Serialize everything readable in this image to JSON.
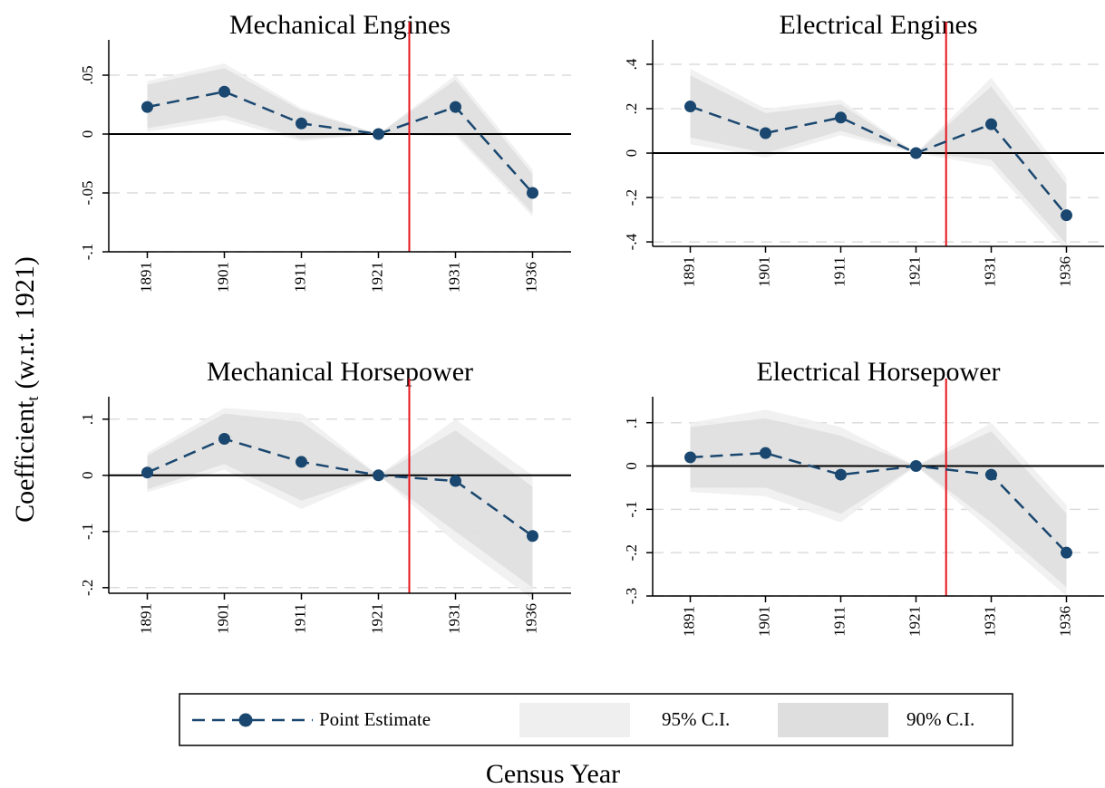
{
  "chart_data": [
    {
      "type": "line",
      "title": "Mechanical Engines",
      "categories": [
        "1891",
        "1901",
        "1911",
        "1921",
        "1931",
        "1936"
      ],
      "ylim": [
        -0.1,
        0.08
      ],
      "yticks": [
        {
          "value": -0.1,
          "label": "-.1"
        },
        {
          "value": -0.05,
          "label": "-.05"
        },
        0,
        {
          "value": 0.05,
          "label": ".05"
        }
      ],
      "grid": true,
      "hline": 0,
      "vline": 3.4,
      "vline_color": "#e8141c",
      "series": [
        {
          "name": "Point Estimate",
          "color": "#1a476f",
          "values": [
            0.023,
            0.036,
            0.009,
            0,
            0.023,
            -0.05
          ]
        },
        {
          "name": "95% C.I.",
          "color": "#efefef",
          "lower": [
            0.002,
            0.012,
            -0.006,
            0,
            -0.002,
            -0.07
          ],
          "upper": [
            0.045,
            0.06,
            0.022,
            0,
            0.05,
            -0.03
          ]
        },
        {
          "name": "90% C.I.",
          "color": "#dedede",
          "lower": [
            0.005,
            0.016,
            -0.004,
            0,
            0.001,
            -0.067
          ],
          "upper": [
            0.042,
            0.056,
            0.02,
            0,
            0.046,
            -0.034
          ]
        }
      ]
    },
    {
      "type": "line",
      "title": "Electrical Engines",
      "categories": [
        "1891",
        "1901",
        "1911",
        "1921",
        "1931",
        "1936"
      ],
      "ylim": [
        -0.42,
        0.51
      ],
      "yticks": [
        {
          "value": -0.4,
          "label": "-.4"
        },
        {
          "value": -0.2,
          "label": "-.2"
        },
        0,
        {
          "value": 0.2,
          "label": ".2"
        },
        {
          "value": 0.4,
          "label": ".4"
        }
      ],
      "grid": true,
      "hline": 0,
      "vline": 3.4,
      "vline_color": "#e8141c",
      "series": [
        {
          "name": "Point Estimate",
          "color": "#1a476f",
          "values": [
            0.21,
            0.09,
            0.16,
            0,
            0.13,
            -0.28
          ]
        },
        {
          "name": "95% C.I.",
          "color": "#efefef",
          "lower": [
            0.04,
            -0.02,
            0.08,
            0,
            -0.06,
            -0.44
          ],
          "upper": [
            0.38,
            0.2,
            0.24,
            0,
            0.34,
            -0.11
          ]
        },
        {
          "name": "90% C.I.",
          "color": "#dedede",
          "lower": [
            0.07,
            0.0,
            0.1,
            0,
            -0.03,
            -0.41
          ],
          "upper": [
            0.35,
            0.18,
            0.22,
            0,
            0.3,
            -0.14
          ]
        }
      ]
    },
    {
      "type": "line",
      "title": "Mechanical Horsepower",
      "categories": [
        "1891",
        "1901",
        "1911",
        "1921",
        "1931",
        "1936"
      ],
      "ylim": [
        -0.21,
        0.14
      ],
      "yticks": [
        {
          "value": -0.2,
          "label": "-.2"
        },
        {
          "value": -0.1,
          "label": "-.1"
        },
        0,
        {
          "value": 0.1,
          "label": ".1"
        }
      ],
      "grid": true,
      "hline": 0,
      "vline": 3.4,
      "vline_color": "#e8141c",
      "series": [
        {
          "name": "Point Estimate",
          "color": "#1a476f",
          "values": [
            0.005,
            0.065,
            0.024,
            0,
            -0.01,
            -0.108
          ]
        },
        {
          "name": "95% C.I.",
          "color": "#efefef",
          "lower": [
            -0.03,
            0.01,
            -0.06,
            0,
            -0.12,
            -0.22
          ],
          "upper": [
            0.04,
            0.12,
            0.11,
            0,
            0.1,
            0.0
          ]
        },
        {
          "name": "90% C.I.",
          "color": "#dedede",
          "lower": [
            -0.025,
            0.02,
            -0.045,
            0,
            -0.1,
            -0.2
          ],
          "upper": [
            0.035,
            0.11,
            0.095,
            0,
            0.08,
            -0.02
          ]
        }
      ]
    },
    {
      "type": "line",
      "title": "Electrical Horsepower",
      "categories": [
        "1891",
        "1901",
        "1911",
        "1921",
        "1931",
        "1936"
      ],
      "ylim": [
        -0.3,
        0.16
      ],
      "yticks": [
        {
          "value": -0.3,
          "label": "-.3"
        },
        {
          "value": -0.2,
          "label": "-.2"
        },
        {
          "value": -0.1,
          "label": "-.1"
        },
        0,
        {
          "value": 0.1,
          "label": ".1"
        }
      ],
      "grid": true,
      "hline": 0,
      "vline": 3.4,
      "vline_color": "#e8141c",
      "series": [
        {
          "name": "Point Estimate",
          "color": "#1a476f",
          "values": [
            0.02,
            0.03,
            -0.02,
            0,
            -0.02,
            -0.2
          ]
        },
        {
          "name": "95% C.I.",
          "color": "#efefef",
          "lower": [
            -0.06,
            -0.07,
            -0.13,
            0,
            -0.15,
            -0.3
          ],
          "upper": [
            0.1,
            0.13,
            0.09,
            0,
            0.1,
            -0.09
          ]
        },
        {
          "name": "90% C.I.",
          "color": "#dedede",
          "lower": [
            -0.05,
            -0.05,
            -0.11,
            0,
            -0.13,
            -0.28
          ],
          "upper": [
            0.09,
            0.11,
            0.07,
            0,
            0.08,
            -0.11
          ]
        }
      ]
    }
  ],
  "ylabel": {
    "text": "Coefficient",
    "subscript": "t",
    "suffix": "(w.r.t. 1921)"
  },
  "xlabel": "Census Year"
}
